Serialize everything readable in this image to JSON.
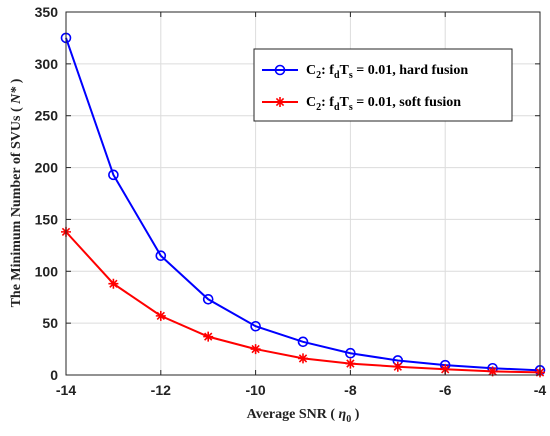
{
  "chart_data": {
    "type": "line",
    "x": [
      -14,
      -13,
      -12,
      -11,
      -10,
      -9,
      -8,
      -7,
      -6,
      -5,
      -4
    ],
    "series": [
      {
        "name_parts": {
          "c": "C",
          "c_sub": "2",
          "mid": ":  f",
          "f_sub": "d",
          "t": "T",
          "t_sub": "s",
          "rest": " = 0.01, hard fusion"
        },
        "color": "#0000ff",
        "marker": "circle",
        "values": [
          325,
          193,
          115,
          73,
          47,
          32,
          21,
          14,
          9.5,
          6.5,
          4.5
        ]
      },
      {
        "name_parts": {
          "c": "C",
          "c_sub": "2",
          "mid": ":  f",
          "f_sub": "d",
          "t": "T",
          "t_sub": "s",
          "rest": " = 0.01, soft fusion"
        },
        "color": "#ff0000",
        "marker": "star",
        "values": [
          138,
          88,
          57,
          37,
          25,
          16,
          11,
          8,
          5.5,
          3.5,
          2.5
        ]
      }
    ],
    "xlim": [
      -14,
      -4
    ],
    "ylim": [
      0,
      350
    ],
    "xticks": [
      -14,
      -12,
      -10,
      -8,
      -6,
      -4
    ],
    "yticks": [
      0,
      50,
      100,
      150,
      200,
      250,
      300,
      350
    ],
    "xlabel": {
      "pre": "Average SNR ( ",
      "sym": "η",
      "sub": "0",
      "post": " )"
    },
    "ylabel": {
      "pre": "The Minimum Number of SVUs ( ",
      "sym": "N*",
      "post": " )"
    },
    "grid": true,
    "legend_position": "top-right"
  }
}
